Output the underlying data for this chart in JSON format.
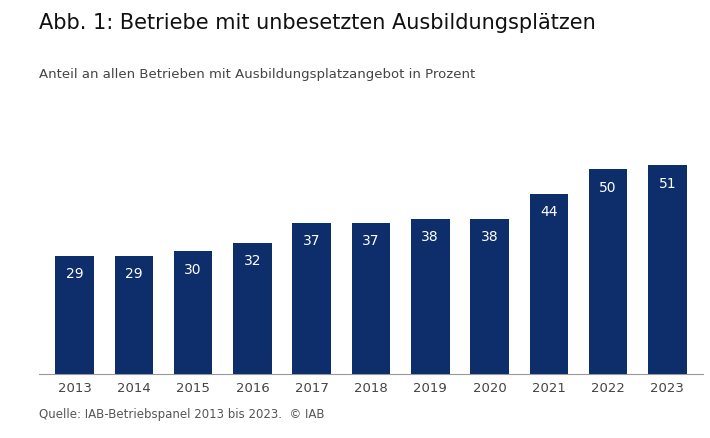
{
  "title": "Abb. 1: Betriebe mit unbesetzten Ausbildungsplätzen",
  "subtitle": "Anteil an allen Betrieben mit Ausbildungsplatzangebot in Prozent",
  "source": "Quelle: IAB-Betriebspanel 2013 bis 2023.  © IAB",
  "years": [
    2013,
    2014,
    2015,
    2016,
    2017,
    2018,
    2019,
    2020,
    2021,
    2022,
    2023
  ],
  "values": [
    29,
    29,
    30,
    32,
    37,
    37,
    38,
    38,
    44,
    50,
    51
  ],
  "bar_color": "#0d2d6b",
  "label_color": "#ffffff",
  "background_color": "#ffffff",
  "title_fontsize": 15,
  "subtitle_fontsize": 9.5,
  "label_fontsize": 10,
  "source_fontsize": 8.5,
  "tick_fontsize": 9.5,
  "ylim": [
    0,
    60
  ],
  "bar_width": 0.65
}
